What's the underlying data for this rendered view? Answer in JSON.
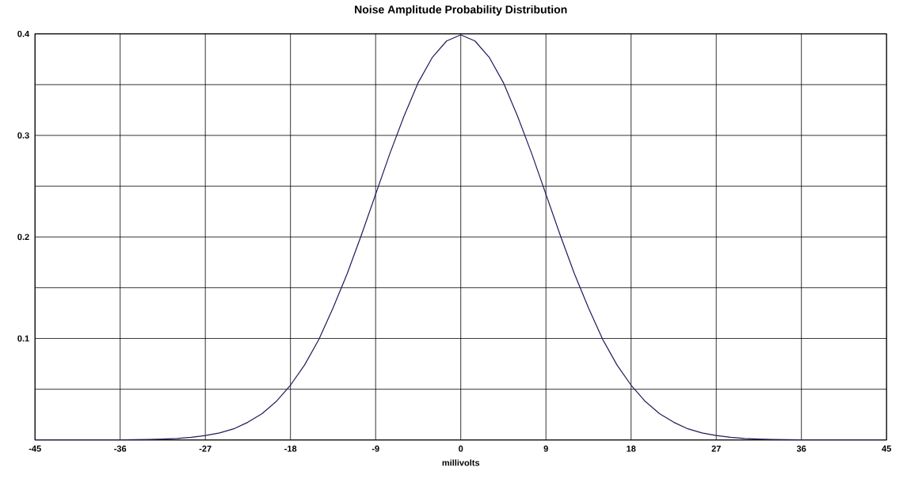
{
  "chart_data": {
    "type": "line",
    "title": "Noise Amplitude Probability Distribution",
    "xlabel": "millivolts",
    "x": [
      -45,
      -40.5,
      -36,
      -34.5,
      -33,
      -31.5,
      -30,
      -28.5,
      -27,
      -25.5,
      -24,
      -22.5,
      -21,
      -19.5,
      -18,
      -16.5,
      -15,
      -13.5,
      -12,
      -10.5,
      -9,
      -7.5,
      -6,
      -4.5,
      -3,
      -1.5,
      0,
      1.5,
      3,
      4.5,
      6,
      7.5,
      9,
      10.5,
      12,
      13.5,
      15,
      16.5,
      18,
      19.5,
      21,
      22.5,
      24,
      25.5,
      27,
      28.5,
      30,
      31.5,
      33,
      34.5,
      36,
      40.5,
      45
    ],
    "series": [
      {
        "color": "#1c1c5c",
        "values": [
          0,
          0,
          0.0001,
          0.0003,
          0.0005,
          0.0009,
          0.0015,
          0.0026,
          0.0044,
          0.007,
          0.011,
          0.0175,
          0.026,
          0.038,
          0.054,
          0.074,
          0.099,
          0.13,
          0.164,
          0.202,
          0.242,
          0.282,
          0.319,
          0.352,
          0.377,
          0.393,
          0.399,
          0.393,
          0.377,
          0.352,
          0.319,
          0.282,
          0.242,
          0.202,
          0.164,
          0.13,
          0.099,
          0.074,
          0.054,
          0.038,
          0.026,
          0.0175,
          0.011,
          0.007,
          0.0044,
          0.0026,
          0.0015,
          0.0009,
          0.0005,
          0.0003,
          0.0001,
          0,
          0
        ]
      }
    ],
    "xlim": [
      -45,
      45
    ],
    "ylim": [
      0,
      0.4
    ],
    "xticks": [
      -45,
      -36,
      -27,
      -18,
      -9,
      0,
      9,
      18,
      27,
      36,
      45
    ],
    "yticks": [
      {
        "value": 0,
        "label": null
      },
      {
        "value": 0.05,
        "label": null
      },
      0.1,
      {
        "value": 0.15,
        "label": null
      },
      0.2,
      {
        "value": 0.25,
        "label": null
      },
      0.3,
      {
        "value": 0.35,
        "label": null
      },
      0.4
    ],
    "grid": true,
    "marker": "none",
    "line_style": "solid"
  }
}
